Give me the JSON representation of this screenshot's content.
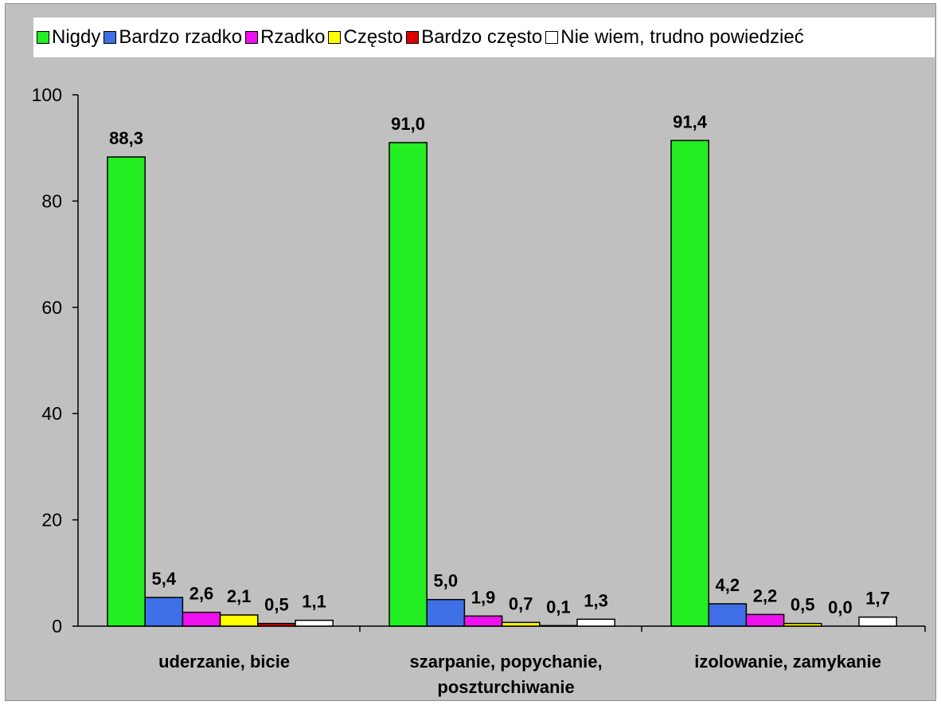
{
  "chart_data": {
    "type": "bar",
    "categories": [
      "uderzanie, bicie",
      "szarpanie, popychanie, poszturchiwanie",
      "izolowanie, zamykanie"
    ],
    "category_lines": [
      [
        "uderzanie, bicie"
      ],
      [
        "szarpanie, popychanie,",
        "poszturchiwanie"
      ],
      [
        "izolowanie, zamykanie"
      ]
    ],
    "series": [
      {
        "name": "Nigdy",
        "color": "#22ee22",
        "values": [
          88.3,
          91.0,
          91.4
        ],
        "labels": [
          "88,3",
          "91,0",
          "91,4"
        ]
      },
      {
        "name": "Bardzo rzadko",
        "color": "#3f6fe6",
        "values": [
          5.4,
          5.0,
          4.2
        ],
        "labels": [
          "5,4",
          "5,0",
          "4,2"
        ]
      },
      {
        "name": "Rzadko",
        "color": "#ee10ee",
        "values": [
          2.6,
          1.9,
          2.2
        ],
        "labels": [
          "2,6",
          "1,9",
          "2,2"
        ]
      },
      {
        "name": "Często",
        "color": "#ffff00",
        "values": [
          2.1,
          0.7,
          0.5
        ],
        "labels": [
          "2,1",
          "0,7",
          "0,5"
        ]
      },
      {
        "name": "Bardzo często",
        "color": "#dd0000",
        "values": [
          0.5,
          0.1,
          0.0
        ],
        "labels": [
          "0,5",
          "0,1",
          "0,0"
        ]
      },
      {
        "name": "Nie wiem, trudno powiedzieć",
        "color": "#ffffff",
        "values": [
          1.1,
          1.3,
          1.7
        ],
        "labels": [
          "1,1",
          "1,3",
          "1,7"
        ]
      }
    ],
    "yticks": [
      0,
      20,
      40,
      60,
      80,
      100
    ],
    "ytick_labels": [
      "0",
      "20",
      "40",
      "60",
      "80",
      "100"
    ],
    "ylim": [
      0,
      100
    ],
    "grid": false,
    "legend_position": "top"
  }
}
